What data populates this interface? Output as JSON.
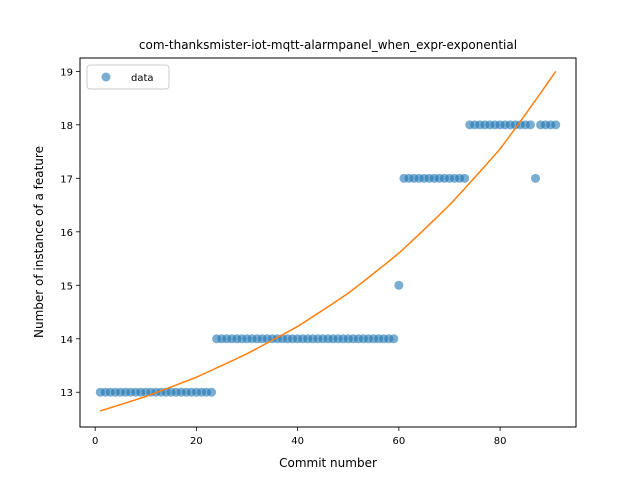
{
  "chart_data": {
    "type": "scatter",
    "title": "com-thanksmister-iot-mqtt-alarmpanel_when_expr-exponential",
    "xlabel": "Commit number",
    "ylabel": "Number of instance of a feature",
    "xlim": [
      -3,
      95
    ],
    "ylim": [
      12.35,
      19.25
    ],
    "xticks": [
      0,
      20,
      40,
      60,
      80
    ],
    "yticks": [
      13,
      14,
      15,
      16,
      17,
      18,
      19
    ],
    "grid": false,
    "legend": {
      "position": "top-left",
      "entries": [
        "data"
      ]
    },
    "colors": {
      "data": "#1f77b4",
      "fit": "#ff7f0e"
    },
    "series": [
      {
        "name": "data",
        "kind": "points",
        "x": [
          1,
          2,
          3,
          4,
          5,
          6,
          7,
          8,
          9,
          10,
          11,
          12,
          13,
          14,
          15,
          16,
          17,
          18,
          19,
          20,
          21,
          22,
          23,
          24,
          25,
          26,
          27,
          28,
          29,
          30,
          31,
          32,
          33,
          34,
          35,
          36,
          37,
          38,
          39,
          40,
          41,
          42,
          43,
          44,
          45,
          46,
          47,
          48,
          49,
          50,
          51,
          52,
          53,
          54,
          55,
          56,
          57,
          58,
          59,
          60,
          61,
          62,
          63,
          64,
          65,
          66,
          67,
          68,
          69,
          70,
          71,
          72,
          73,
          74,
          75,
          76,
          77,
          78,
          79,
          80,
          81,
          82,
          83,
          84,
          85,
          86,
          87,
          88,
          89,
          90,
          91
        ],
        "y": [
          13,
          13,
          13,
          13,
          13,
          13,
          13,
          13,
          13,
          13,
          13,
          13,
          13,
          13,
          13,
          13,
          13,
          13,
          13,
          13,
          13,
          13,
          13,
          14,
          14,
          14,
          14,
          14,
          14,
          14,
          14,
          14,
          14,
          14,
          14,
          14,
          14,
          14,
          14,
          14,
          14,
          14,
          14,
          14,
          14,
          14,
          14,
          14,
          14,
          14,
          14,
          14,
          14,
          14,
          14,
          14,
          14,
          14,
          14,
          15,
          17,
          17,
          17,
          17,
          17,
          17,
          17,
          17,
          17,
          17,
          17,
          17,
          17,
          18,
          18,
          18,
          18,
          18,
          18,
          18,
          18,
          18,
          18,
          18,
          18,
          18,
          17,
          18,
          18,
          18,
          18
        ]
      },
      {
        "kind": "fit",
        "x": [
          1,
          10,
          20,
          30,
          40,
          50,
          60,
          70,
          80,
          91
        ],
        "y": [
          12.65,
          12.92,
          13.28,
          13.72,
          14.23,
          14.85,
          15.6,
          16.5,
          17.55,
          19.0
        ]
      }
    ]
  }
}
